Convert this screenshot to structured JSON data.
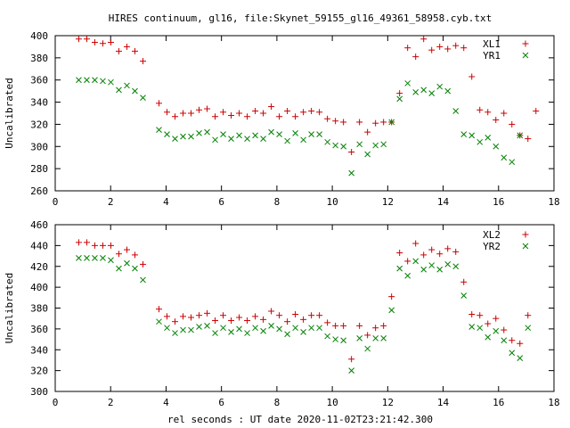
{
  "title": "HIRES continuum, gl16, file:Skynet_59155_gl16_49361_58958.cyb.txt",
  "xlabel": "rel seconds : UT date 2020-11-02T23:21:42.300",
  "chart_data": [
    {
      "type": "scatter",
      "ylabel": "Uncalibrated",
      "xlim": [
        0,
        18
      ],
      "ylim": [
        260,
        400
      ],
      "xticks": [
        0,
        2,
        4,
        6,
        8,
        10,
        12,
        14,
        16,
        18
      ],
      "yticks": [
        260,
        280,
        300,
        320,
        340,
        360,
        380,
        400
      ],
      "x": [
        0.85,
        1.1,
        1.35,
        1.6,
        1.85,
        2.1,
        2.35,
        2.6,
        2.85,
        3.1,
        3.35,
        3.6,
        3.85,
        4.1,
        4.35,
        4.6,
        4.85,
        5.1,
        5.35,
        5.6,
        5.85,
        6.1,
        6.35,
        6.6,
        6.85,
        7.1,
        7.35,
        7.6,
        7.85,
        8.1,
        8.35,
        8.6,
        8.85,
        9.1,
        9.35,
        9.6,
        9.85,
        10.1,
        10.35,
        10.6,
        10.85,
        11.1,
        11.35,
        11.6,
        11.85,
        12.1,
        12.35,
        12.6,
        12.85,
        13.1,
        13.35,
        13.6,
        13.85,
        14.1,
        14.35,
        14.6,
        14.85,
        15.1,
        15.35,
        15.6,
        15.85,
        16.1,
        16.35,
        16.6,
        16.85,
        17.1,
        17.35
      ],
      "series": [
        {
          "name": "XL1",
          "color": "#cc0000",
          "marker": "plus",
          "values": [
            397,
            397,
            394,
            393,
            394,
            386,
            390,
            386,
            377,
            339,
            331,
            327,
            331,
            331,
            334,
            335,
            327,
            332,
            328,
            331,
            327,
            332,
            330,
            336,
            327,
            335,
            328,
            331,
            333,
            331,
            327,
            329,
            325,
            322,
            322,
            295,
            322,
            314,
            322,
            322,
            324,
            348,
            389,
            381,
            397,
            387,
            391,
            389,
            390,
            392,
            389,
            363,
            333,
            330,
            327,
            330,
            320,
            310,
            307,
            332,
            297,
            332,
            332,
            332,
            332,
            332,
            332
          ],
          "_note": ""
        },
        {
          "name": "YR1",
          "color": "#008000",
          "marker": "x",
          "values": [
            360,
            360,
            360,
            359,
            358,
            351,
            355,
            350,
            344,
            315,
            311,
            307,
            309,
            309,
            312,
            313,
            306,
            311,
            307,
            310,
            307,
            310,
            308,
            313,
            306,
            313,
            306,
            310,
            311,
            310,
            304,
            305,
            302,
            300,
            276,
            302,
            293,
            301,
            302,
            322,
            343,
            357,
            349,
            351,
            349,
            354,
            350,
            332,
            311,
            310,
            304,
            308,
            300,
            290,
            286,
            310,
            310,
            310,
            310,
            310,
            310,
            310,
            310,
            310,
            310,
            310,
            310
          ]
        }
      ]
    },
    {
      "type": "scatter",
      "ylabel": "Uncalibrated",
      "xlim": [
        0,
        18
      ],
      "ylim": [
        300,
        460
      ],
      "xticks": [
        0,
        2,
        4,
        6,
        8,
        10,
        12,
        14,
        16,
        18
      ],
      "yticks": [
        300,
        320,
        340,
        360,
        380,
        400,
        420,
        440,
        460
      ],
      "x": [],
      "series": [
        {
          "name": "XL2",
          "color": "#cc0000",
          "marker": "plus",
          "values": []
        },
        {
          "name": "YR2",
          "color": "#008000",
          "marker": "x",
          "values": []
        }
      ]
    }
  ],
  "points": {
    "top_red": [
      [
        0.85,
        397
      ],
      [
        1.1,
        397
      ],
      [
        1.35,
        394
      ],
      [
        1.6,
        393
      ],
      [
        1.85,
        394
      ],
      [
        2.1,
        386
      ],
      [
        2.35,
        390
      ],
      [
        2.6,
        386
      ],
      [
        2.85,
        377
      ],
      [
        3.35,
        339
      ],
      [
        3.6,
        331
      ],
      [
        3.85,
        327
      ],
      [
        4.1,
        330
      ],
      [
        4.35,
        330
      ],
      [
        4.6,
        333
      ],
      [
        4.85,
        334
      ],
      [
        5.1,
        327
      ],
      [
        5.35,
        331
      ],
      [
        5.6,
        328
      ],
      [
        5.85,
        330
      ],
      [
        6.1,
        327
      ],
      [
        6.35,
        332
      ],
      [
        6.6,
        330
      ],
      [
        6.85,
        336
      ],
      [
        7.1,
        327
      ],
      [
        7.35,
        332
      ],
      [
        7.6,
        327
      ],
      [
        7.85,
        331
      ],
      [
        8.1,
        332
      ],
      [
        8.35,
        331
      ],
      [
        8.6,
        325
      ],
      [
        8.85,
        323
      ],
      [
        9.1,
        322
      ],
      [
        9.35,
        295
      ],
      [
        9.6,
        322
      ],
      [
        9.85,
        313
      ],
      [
        10.1,
        321
      ],
      [
        10.35,
        322
      ],
      [
        10.6,
        322
      ],
      [
        10.85,
        348
      ],
      [
        11.1,
        389
      ],
      [
        11.35,
        381
      ],
      [
        11.6,
        397
      ],
      [
        11.85,
        387
      ],
      [
        12.1,
        390
      ],
      [
        12.35,
        388
      ],
      [
        12.6,
        391
      ],
      [
        12.85,
        389
      ],
      [
        13.1,
        363
      ],
      [
        13.35,
        333
      ],
      [
        13.6,
        331
      ],
      [
        13.85,
        324
      ],
      [
        14.1,
        330
      ],
      [
        14.35,
        320
      ],
      [
        14.6,
        310
      ],
      [
        14.85,
        307
      ],
      [
        15.1,
        332
      ]
    ],
    "top_green": [
      [
        0.85,
        360
      ],
      [
        1.1,
        360
      ],
      [
        1.35,
        360
      ],
      [
        1.6,
        359
      ],
      [
        1.85,
        358
      ],
      [
        2.1,
        351
      ],
      [
        2.35,
        355
      ],
      [
        2.6,
        350
      ],
      [
        2.85,
        344
      ],
      [
        3.35,
        315
      ],
      [
        3.6,
        311
      ],
      [
        3.85,
        307
      ],
      [
        4.1,
        309
      ],
      [
        4.35,
        309
      ],
      [
        4.6,
        312
      ],
      [
        4.85,
        313
      ],
      [
        5.1,
        306
      ],
      [
        5.35,
        311
      ],
      [
        5.6,
        307
      ],
      [
        5.85,
        310
      ],
      [
        6.1,
        307
      ],
      [
        6.35,
        310
      ],
      [
        6.6,
        307
      ],
      [
        6.85,
        313
      ],
      [
        7.1,
        311
      ],
      [
        7.35,
        305
      ],
      [
        7.6,
        312
      ],
      [
        7.85,
        306
      ],
      [
        8.1,
        311
      ],
      [
        8.35,
        311
      ],
      [
        8.6,
        304
      ],
      [
        8.85,
        301
      ],
      [
        9.1,
        300
      ],
      [
        9.35,
        276
      ],
      [
        9.6,
        302
      ],
      [
        9.85,
        293
      ],
      [
        10.1,
        301
      ],
      [
        10.35,
        302
      ],
      [
        10.6,
        322
      ],
      [
        10.85,
        343
      ],
      [
        11.1,
        357
      ],
      [
        11.35,
        349
      ],
      [
        11.6,
        351
      ],
      [
        11.85,
        348
      ],
      [
        12.1,
        354
      ],
      [
        12.35,
        350
      ],
      [
        12.6,
        332
      ],
      [
        12.85,
        311
      ],
      [
        13.1,
        310
      ],
      [
        13.35,
        304
      ],
      [
        13.6,
        308
      ],
      [
        13.85,
        300
      ],
      [
        14.1,
        290
      ],
      [
        14.35,
        286
      ],
      [
        14.6,
        310
      ]
    ],
    "bottom_red": [
      [
        0.85,
        443
      ],
      [
        1.1,
        443
      ],
      [
        1.35,
        440
      ],
      [
        1.6,
        440
      ],
      [
        1.85,
        440
      ],
      [
        2.1,
        432
      ],
      [
        2.35,
        436
      ],
      [
        2.6,
        431
      ],
      [
        2.85,
        422
      ],
      [
        3.35,
        379
      ],
      [
        3.6,
        372
      ],
      [
        3.85,
        367
      ],
      [
        4.1,
        372
      ],
      [
        4.35,
        371
      ],
      [
        4.6,
        373
      ],
      [
        4.85,
        375
      ],
      [
        5.1,
        368
      ],
      [
        5.35,
        373
      ],
      [
        5.6,
        368
      ],
      [
        5.85,
        371
      ],
      [
        6.1,
        368
      ],
      [
        6.35,
        372
      ],
      [
        6.6,
        369
      ],
      [
        6.85,
        377
      ],
      [
        7.1,
        373
      ],
      [
        7.35,
        367
      ],
      [
        7.6,
        374
      ],
      [
        7.85,
        369
      ],
      [
        8.1,
        373
      ],
      [
        8.35,
        373
      ],
      [
        8.6,
        366
      ],
      [
        8.85,
        363
      ],
      [
        9.1,
        363
      ],
      [
        9.35,
        331
      ],
      [
        9.6,
        363
      ],
      [
        9.85,
        354
      ],
      [
        10.1,
        361
      ],
      [
        10.35,
        363
      ],
      [
        10.6,
        391
      ],
      [
        10.85,
        433
      ],
      [
        11.1,
        425
      ],
      [
        11.35,
        442
      ],
      [
        11.6,
        431
      ],
      [
        11.85,
        436
      ],
      [
        12.1,
        432
      ],
      [
        12.35,
        437
      ],
      [
        12.6,
        434
      ],
      [
        12.85,
        405
      ],
      [
        13.1,
        374
      ],
      [
        13.35,
        373
      ],
      [
        13.6,
        365
      ],
      [
        13.85,
        370
      ],
      [
        14.1,
        359
      ],
      [
        14.35,
        349
      ],
      [
        14.6,
        346
      ],
      [
        14.85,
        373
      ]
    ],
    "bottom_green": [
      [
        0.85,
        428
      ],
      [
        1.1,
        428
      ],
      [
        1.35,
        428
      ],
      [
        1.6,
        428
      ],
      [
        1.85,
        426
      ],
      [
        2.1,
        418
      ],
      [
        2.35,
        423
      ],
      [
        2.6,
        418
      ],
      [
        2.85,
        407
      ],
      [
        3.35,
        367
      ],
      [
        3.6,
        361
      ],
      [
        3.85,
        356
      ],
      [
        4.1,
        359
      ],
      [
        4.35,
        359
      ],
      [
        4.6,
        362
      ],
      [
        4.85,
        363
      ],
      [
        5.1,
        356
      ],
      [
        5.35,
        361
      ],
      [
        5.6,
        357
      ],
      [
        5.85,
        360
      ],
      [
        6.1,
        356
      ],
      [
        6.35,
        361
      ],
      [
        6.6,
        358
      ],
      [
        6.85,
        363
      ],
      [
        7.1,
        360
      ],
      [
        7.35,
        355
      ],
      [
        7.6,
        361
      ],
      [
        7.85,
        357
      ],
      [
        8.1,
        361
      ],
      [
        8.35,
        361
      ],
      [
        8.6,
        353
      ],
      [
        8.85,
        350
      ],
      [
        9.1,
        349
      ],
      [
        9.35,
        320
      ],
      [
        9.6,
        351
      ],
      [
        9.85,
        341
      ],
      [
        10.1,
        351
      ],
      [
        10.35,
        351
      ],
      [
        10.6,
        378
      ],
      [
        10.85,
        418
      ],
      [
        11.1,
        411
      ],
      [
        11.35,
        425
      ],
      [
        11.6,
        417
      ],
      [
        11.85,
        421
      ],
      [
        12.1,
        417
      ],
      [
        12.35,
        422
      ],
      [
        12.6,
        420
      ],
      [
        12.85,
        392
      ],
      [
        13.1,
        362
      ],
      [
        13.35,
        361
      ],
      [
        13.6,
        352
      ],
      [
        13.85,
        358
      ],
      [
        14.1,
        349
      ],
      [
        14.35,
        337
      ],
      [
        14.6,
        332
      ],
      [
        14.85,
        361
      ]
    ]
  }
}
